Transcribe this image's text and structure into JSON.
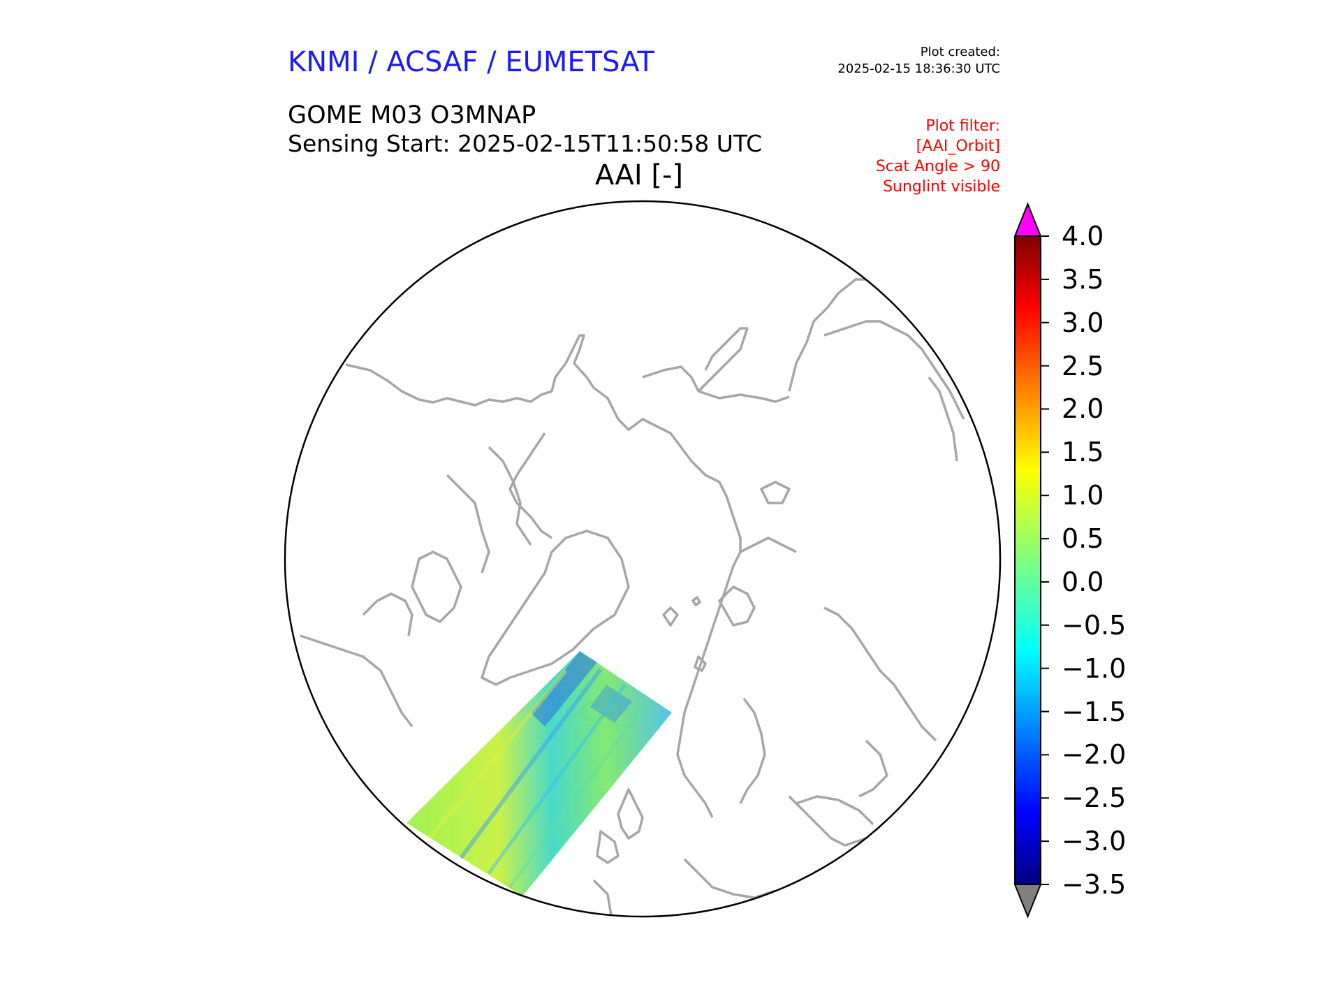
{
  "header": {
    "agency": "KNMI / ACSAF / EUMETSAT",
    "created_label": "Plot created:",
    "created_time": "2025-02-15 18:36:30 UTC",
    "product": "GOME M03 O3MNAP",
    "sensing_start": "Sensing Start: 2025-02-15T11:50:58 UTC",
    "variable_title": "AAI [-]",
    "filters": [
      "Plot filter:",
      "[AAI_Orbit]",
      "Scat Angle > 90",
      "Sunglint visible"
    ]
  },
  "map": {
    "projection": "north-polar-stereographic",
    "coastline_color": "#a6a6a6",
    "boundary_color": "#000000"
  },
  "colorbar": {
    "min": -3.5,
    "max": 4.0,
    "ticks": [
      "4.0",
      "3.5",
      "3.0",
      "2.5",
      "2.0",
      "1.5",
      "1.0",
      "0.5",
      "0.0",
      "−0.5",
      "−1.0",
      "−1.5",
      "−2.0",
      "−2.5",
      "−3.0",
      "−3.5"
    ],
    "over_color": "#ff00ff",
    "under_color": "#808080",
    "colormap": "jet"
  }
}
